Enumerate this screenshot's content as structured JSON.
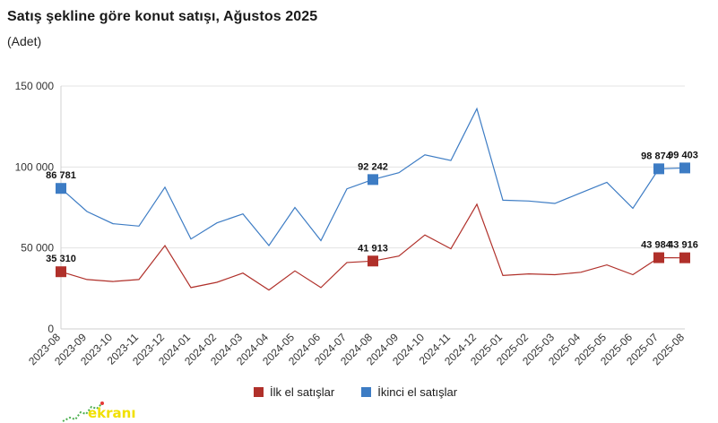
{
  "header": {
    "title": "Satış şekline göre konut satışı, Ağustos 2025",
    "subtitle": "(Adet)"
  },
  "logo": {
    "text": "ekranı"
  },
  "colors": {
    "first": "#b0302a",
    "second": "#3d7cc4",
    "grid": "#e3e3e3"
  },
  "chart_data": {
    "type": "line",
    "title": "Satış şekline göre konut satışı, Ağustos 2025",
    "subtitle": "(Adet)",
    "ylim": [
      0,
      150000
    ],
    "yticks": [
      0,
      50000,
      100000,
      150000
    ],
    "ytick_labels": [
      "0",
      "50 000",
      "100 000",
      "150 000"
    ],
    "grid": "horizontal",
    "legend": "bottom-center",
    "categories": [
      "2023-08",
      "2023-09",
      "2023-10",
      "2023-11",
      "2023-12",
      "2024-01",
      "2024-02",
      "2024-03",
      "2024-04",
      "2024-05",
      "2024-06",
      "2024-07",
      "2024-08",
      "2024-09",
      "2024-10",
      "2024-11",
      "2024-12",
      "2025-01",
      "2025-02",
      "2025-03",
      "2025-04",
      "2025-05",
      "2025-06",
      "2025-07",
      "2025-08"
    ],
    "series": [
      {
        "name": "İlk el satışlar",
        "color": "#b0302a",
        "values": [
          35310,
          30500,
          29300,
          30500,
          51500,
          25500,
          28800,
          34500,
          24000,
          35800,
          25500,
          41000,
          41913,
          45000,
          58000,
          49500,
          77000,
          33000,
          34000,
          33500,
          35000,
          39500,
          33500,
          43984,
          43916
        ],
        "labeled": [
          {
            "index": 0,
            "label": "35 310"
          },
          {
            "index": 12,
            "label": "41 913"
          },
          {
            "index": 23,
            "label": "43 984"
          },
          {
            "index": 24,
            "label": "43 916"
          }
        ]
      },
      {
        "name": "İkinci el satışlar",
        "color": "#3d7cc4",
        "values": [
          86781,
          72500,
          65000,
          63500,
          87500,
          55500,
          65500,
          71000,
          51500,
          75000,
          54500,
          86500,
          92242,
          96500,
          107500,
          104000,
          136000,
          79500,
          79000,
          77500,
          84000,
          90500,
          74500,
          98874,
          99403
        ],
        "labeled": [
          {
            "index": 0,
            "label": "86 781"
          },
          {
            "index": 12,
            "label": "92 242"
          },
          {
            "index": 23,
            "label": "98 874"
          },
          {
            "index": 24,
            "label": "99 403"
          }
        ]
      }
    ]
  }
}
